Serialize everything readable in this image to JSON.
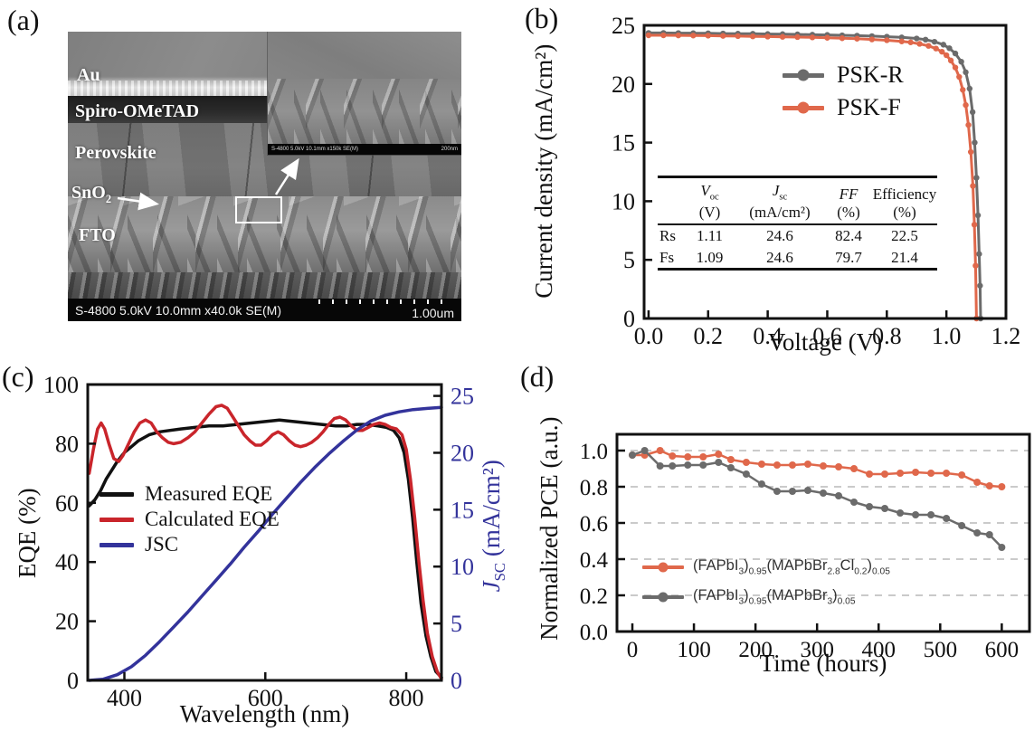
{
  "panels": {
    "a": {
      "label": "(a)",
      "layer_labels": [
        "Au",
        "Spiro-OMeTAD",
        "Perovskite",
        "SnO2",
        "FTO"
      ],
      "status_left": "S-4800 5.0kV 10.0mm x40.0k SE(M)",
      "scale_label": "1.00um",
      "inset_status_left": "S-4800 5.0kV 10.1mm x150k SE(M)",
      "inset_scale_label": "200nm"
    },
    "b": {
      "label": "(b)",
      "table": {
        "headers": [
          {
            "sym": "V",
            "sub": "oc",
            "unit": "(V)"
          },
          {
            "sym": "J",
            "sub": "sc",
            "unit": "(mA/cm²)"
          },
          {
            "sym": "FF",
            "sub": "",
            "unit": "(%)"
          },
          {
            "sym": "Efficiency",
            "sub": "",
            "unit": "(%)"
          }
        ],
        "rows": [
          {
            "label": "Rs",
            "values": [
              "1.11",
              "24.6",
              "82.4",
              "22.5"
            ]
          },
          {
            "label": "Fs",
            "values": [
              "1.09",
              "24.6",
              "79.7",
              "21.4"
            ]
          }
        ]
      }
    },
    "c": {
      "label": "(c)",
      "ylabel_right": {
        "sym": "J",
        "sub": "SC",
        "rest": " (mA/cm²)"
      }
    },
    "d": {
      "label": "(d)"
    }
  },
  "chart_data": [
    {
      "id": "jv-curves",
      "type": "line",
      "title": "",
      "xlabel": "Voltage (V)",
      "ylabel": "Current density (mA/cm²)",
      "xlim": [
        -0.015,
        1.2
      ],
      "ylim": [
        0,
        25
      ],
      "x_ticks": {
        "values": [
          0,
          0.2,
          0.4,
          0.6,
          0.8,
          1.0,
          1.2
        ],
        "labels": [
          "0.0",
          "0.2",
          "0.4",
          "0.6",
          "0.8",
          "1.0",
          "1.2"
        ]
      },
      "y_ticks": {
        "values": [
          0,
          5,
          10,
          15,
          20,
          25
        ],
        "labels": [
          "0",
          "5",
          "10",
          "15",
          "20",
          "25"
        ]
      },
      "grid": false,
      "legend_position": "upper right inside",
      "series": [
        {
          "name": "PSK-R",
          "color": "#6b6b6b",
          "width": 3,
          "markers": true,
          "marker_r": 3.2,
          "x": [
            0,
            0.05,
            0.1,
            0.15,
            0.2,
            0.25,
            0.3,
            0.35,
            0.4,
            0.45,
            0.5,
            0.55,
            0.6,
            0.65,
            0.7,
            0.75,
            0.8,
            0.85,
            0.9,
            0.93,
            0.96,
            0.99,
            1.01,
            1.03,
            1.05,
            1.065,
            1.078,
            1.088,
            1.095,
            1.101,
            1.106,
            1.11,
            1.113,
            1.115
          ],
          "y": [
            24.35,
            24.35,
            24.34,
            24.33,
            24.32,
            24.3,
            24.29,
            24.28,
            24.26,
            24.25,
            24.23,
            24.2,
            24.18,
            24.15,
            24.12,
            24.08,
            24.03,
            23.97,
            23.88,
            23.78,
            23.6,
            23.35,
            23.05,
            22.6,
            21.9,
            21.0,
            19.6,
            17.6,
            15.0,
            12.0,
            8.8,
            5.5,
            2.8,
            0
          ]
        },
        {
          "name": "PSK-F",
          "color": "#e0684b",
          "width": 3,
          "markers": true,
          "marker_r": 3.2,
          "x": [
            0,
            0.05,
            0.1,
            0.15,
            0.2,
            0.25,
            0.3,
            0.35,
            0.4,
            0.45,
            0.5,
            0.55,
            0.6,
            0.65,
            0.7,
            0.75,
            0.8,
            0.85,
            0.88,
            0.91,
            0.94,
            0.965,
            0.985,
            1.0,
            1.015,
            1.03,
            1.043,
            1.055,
            1.065,
            1.074,
            1.082,
            1.089,
            1.094,
            1.098,
            1.101
          ],
          "y": [
            24.15,
            24.15,
            24.14,
            24.13,
            24.12,
            24.1,
            24.08,
            24.06,
            24.04,
            24.02,
            24.0,
            23.97,
            23.94,
            23.9,
            23.86,
            23.8,
            23.73,
            23.63,
            23.55,
            23.42,
            23.25,
            23.02,
            22.75,
            22.45,
            22.0,
            21.4,
            20.6,
            19.5,
            18.2,
            16.5,
            14.2,
            11.3,
            8.0,
            4.5,
            0
          ]
        }
      ]
    },
    {
      "id": "eqe-spectra",
      "type": "line",
      "title": "",
      "xlabel": "Wavelength (nm)",
      "ylabel": "EQE (%)",
      "xlim": [
        348,
        850
      ],
      "ylim": [
        0,
        100
      ],
      "x_ticks": {
        "values": [
          400,
          600,
          800
        ],
        "labels": [
          "400",
          "600",
          "800"
        ]
      },
      "y_ticks": {
        "values": [
          0,
          20,
          40,
          60,
          80,
          100
        ],
        "labels": [
          "0",
          "20",
          "40",
          "60",
          "80",
          "100"
        ]
      },
      "right_axis": {
        "range": [
          0,
          26
        ],
        "color": "#33339b",
        "ticks": {
          "values": [
            0,
            5,
            10,
            15,
            20,
            25
          ],
          "labels": [
            "0",
            "5",
            "10",
            "15",
            "20",
            "25"
          ]
        }
      },
      "grid": false,
      "legend_position": "center left inside",
      "series": [
        {
          "name": "Measured EQE",
          "color": "#111111",
          "width": 3.5,
          "markers": false,
          "x": [
            350,
            358,
            366,
            374,
            382,
            390,
            400,
            410,
            420,
            435,
            450,
            465,
            480,
            500,
            520,
            540,
            560,
            580,
            600,
            620,
            640,
            660,
            680,
            700,
            715,
            730,
            745,
            760,
            772,
            782,
            790,
            797,
            803,
            809,
            815,
            821,
            828,
            835,
            842,
            850
          ],
          "y": [
            59,
            61,
            64,
            68,
            71,
            74,
            77,
            79,
            81,
            83,
            84,
            84.5,
            85,
            85.5,
            86,
            86,
            86.5,
            87,
            87.5,
            88,
            87.5,
            87,
            86.5,
            86,
            86,
            86.5,
            86.5,
            86,
            85.5,
            84.5,
            82,
            77,
            68,
            55,
            40,
            26,
            15,
            8,
            3,
            1
          ]
        },
        {
          "name": "Calculated EQE",
          "color": "#c9252b",
          "width": 3.5,
          "markers": false,
          "x": [
            350,
            356,
            362,
            367,
            372,
            378,
            385,
            392,
            398,
            406,
            414,
            422,
            430,
            438,
            446,
            454,
            462,
            470,
            480,
            490,
            500,
            510,
            520,
            530,
            538,
            546,
            554,
            562,
            570,
            578,
            586,
            594,
            602,
            610,
            618,
            626,
            634,
            642,
            650,
            658,
            666,
            674,
            682,
            690,
            698,
            706,
            714,
            722,
            730,
            738,
            746,
            754,
            762,
            770,
            778,
            786,
            794,
            800,
            806,
            812,
            818,
            824,
            830,
            837,
            844,
            850
          ],
          "y": [
            70,
            78,
            85,
            87,
            85,
            80,
            75,
            74,
            76,
            80,
            84,
            87,
            88,
            87,
            84,
            82,
            80.5,
            80,
            80.5,
            82,
            84,
            87,
            90,
            92.5,
            93,
            92,
            89,
            86,
            83,
            81,
            79.5,
            79.5,
            81,
            83,
            84,
            83,
            81,
            79.5,
            79,
            79.5,
            80.5,
            82,
            84,
            86.5,
            88.5,
            89,
            88,
            86,
            84.5,
            84.5,
            85.5,
            86.5,
            87,
            86.5,
            85.5,
            85,
            83,
            78,
            68,
            55,
            40,
            27,
            16,
            8,
            3,
            0.5
          ]
        },
        {
          "name": "JSC",
          "color": "#33339b",
          "width": 3.5,
          "markers": false,
          "axis": "right",
          "x": [
            350,
            370,
            390,
            410,
            430,
            450,
            470,
            490,
            510,
            530,
            550,
            570,
            590,
            610,
            630,
            650,
            670,
            690,
            710,
            730,
            750,
            770,
            790,
            810,
            830,
            850
          ],
          "y": [
            0,
            0.1,
            0.5,
            1.2,
            2.2,
            3.4,
            4.7,
            6.0,
            7.4,
            8.8,
            10.2,
            11.7,
            13.1,
            14.6,
            16.0,
            17.4,
            18.7,
            19.9,
            21.0,
            22.0,
            22.8,
            23.3,
            23.6,
            23.8,
            23.9,
            24.0
          ]
        }
      ]
    },
    {
      "id": "stability",
      "type": "line",
      "title": "",
      "xlabel": "Time (hours)",
      "ylabel": "Normalized PCE (a.u.)",
      "xlim": [
        -25,
        645
      ],
      "ylim": [
        0,
        1.09
      ],
      "x_ticks": {
        "values": [
          0,
          100,
          200,
          300,
          400,
          500,
          600
        ],
        "labels": [
          "0",
          "100",
          "200",
          "300",
          "400",
          "500",
          "600"
        ]
      },
      "y_ticks": {
        "values": [
          0,
          0.2,
          0.4,
          0.6,
          0.8,
          1.0
        ],
        "labels": [
          "0.0",
          "0.2",
          "0.4",
          "0.6",
          "0.8",
          "1.0"
        ]
      },
      "grid": true,
      "grid_at": [
        0.2,
        0.4,
        0.6,
        0.8,
        1.0
      ],
      "legend_position": "lower left inside",
      "series": [
        {
          "name": "(FAPbI3)0.95(MAPbBr2.8Cl0.2)0.05",
          "color": "#e0684b",
          "width": 2.5,
          "markers": true,
          "marker_r": 4,
          "x": [
            0,
            20,
            45,
            65,
            90,
            115,
            140,
            160,
            185,
            210,
            235,
            260,
            285,
            310,
            335,
            360,
            385,
            410,
            435,
            460,
            485,
            510,
            535,
            560,
            580,
            600
          ],
          "y": [
            0.975,
            0.975,
            1.0,
            0.97,
            0.965,
            0.965,
            0.98,
            0.95,
            0.935,
            0.925,
            0.92,
            0.92,
            0.925,
            0.915,
            0.91,
            0.9,
            0.87,
            0.87,
            0.875,
            0.88,
            0.875,
            0.875,
            0.865,
            0.825,
            0.805,
            0.8
          ]
        },
        {
          "name": "(FAPbI3)0.95(MAPbBr3)0.05",
          "color": "#6b6b6b",
          "width": 2.5,
          "markers": true,
          "marker_r": 4,
          "x": [
            0,
            20,
            45,
            65,
            90,
            115,
            140,
            160,
            185,
            210,
            235,
            260,
            285,
            310,
            335,
            360,
            385,
            410,
            435,
            460,
            485,
            510,
            535,
            560,
            580,
            600
          ],
          "y": [
            0.975,
            1.0,
            0.915,
            0.915,
            0.92,
            0.92,
            0.935,
            0.905,
            0.87,
            0.815,
            0.775,
            0.775,
            0.78,
            0.765,
            0.75,
            0.715,
            0.69,
            0.68,
            0.655,
            0.645,
            0.645,
            0.625,
            0.585,
            0.545,
            0.535,
            0.465
          ]
        }
      ]
    }
  ]
}
